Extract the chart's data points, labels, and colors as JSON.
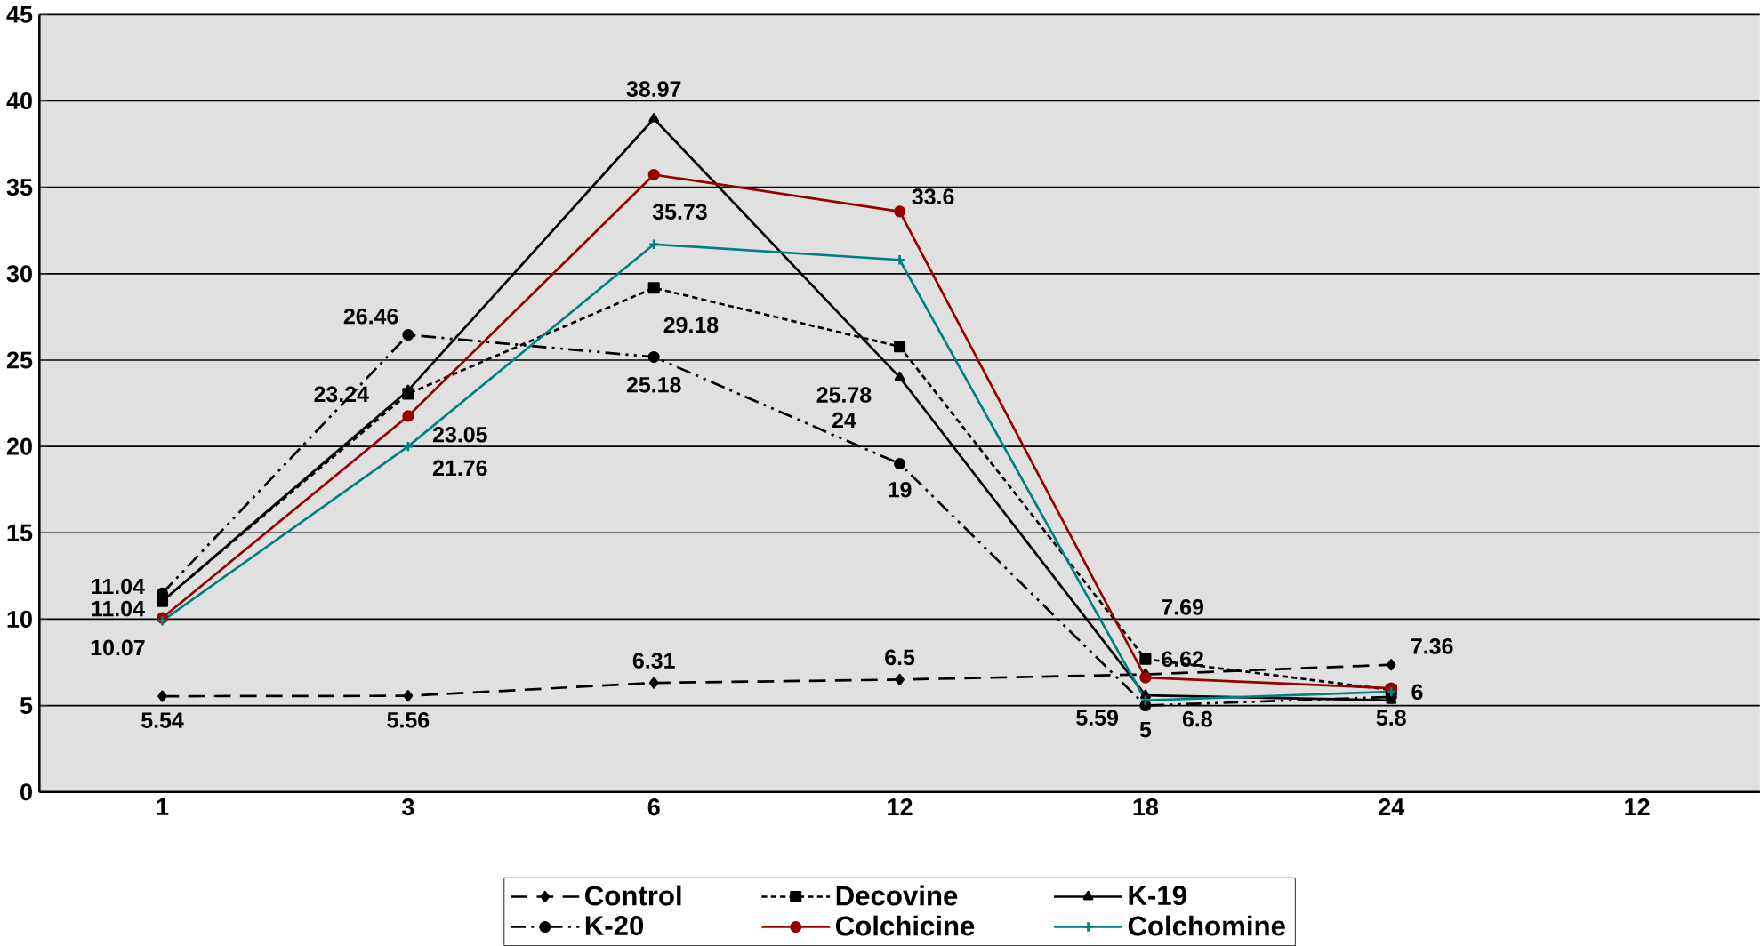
{
  "chart_data": {
    "type": "line",
    "categories": [
      "1",
      "3",
      "6",
      "12",
      "18",
      "24",
      "12"
    ],
    "series": [
      {
        "name": "Control",
        "color": "#000000",
        "marker": "diamond",
        "line_style": "dashed",
        "values": [
          5.54,
          5.56,
          6.31,
          6.5,
          6.8,
          7.36,
          null
        ],
        "value_labels": [
          "5.54",
          "5.56",
          "6.31",
          "6.5",
          "6.8",
          "7.36",
          null
        ]
      },
      {
        "name": "Decovine",
        "color": "#000000",
        "marker": "square",
        "line_style": "dotted",
        "values": [
          11.04,
          23.05,
          29.18,
          25.78,
          7.69,
          5.9,
          null
        ],
        "value_labels": [
          "11.04",
          "23.05",
          "29.18",
          "25.78",
          "7.69",
          null,
          null
        ]
      },
      {
        "name": "K-19",
        "color": "#000000",
        "marker": "triangle",
        "line_style": "solid",
        "values": [
          11.04,
          23.24,
          38.97,
          24,
          5.59,
          5.3,
          null
        ],
        "value_labels": [
          "11.04",
          "23.24",
          "38.97",
          "24",
          "5.59",
          null,
          null
        ]
      },
      {
        "name": "K-20",
        "color": "#000000",
        "marker": "circle",
        "line_style": "dashdot",
        "values": [
          11.5,
          26.46,
          25.18,
          19,
          5,
          5.5,
          null
        ],
        "value_labels": [
          null,
          "26.46",
          "25.18",
          "19",
          "5",
          null,
          null
        ]
      },
      {
        "name": "Colchicine",
        "color": "#990000",
        "marker": "circle",
        "line_style": "solid",
        "values": [
          10.07,
          21.76,
          35.73,
          33.6,
          6.62,
          6,
          null
        ],
        "value_labels": [
          "10.07",
          "21.76",
          "35.73",
          "33.6",
          "6.62",
          "6",
          null
        ]
      },
      {
        "name": "Colchomine",
        "color": "#008080",
        "marker": "cross",
        "line_style": "solid",
        "values": [
          9.9,
          20,
          31.7,
          30.8,
          5.3,
          5.8,
          null
        ],
        "value_labels": [
          null,
          null,
          null,
          null,
          null,
          "5.8",
          null
        ]
      }
    ],
    "ylim": [
      0,
      45
    ],
    "yticks": [
      0,
      5,
      10,
      15,
      20,
      25,
      30,
      35,
      40,
      45
    ],
    "grid": "y",
    "legend": "bottom"
  }
}
